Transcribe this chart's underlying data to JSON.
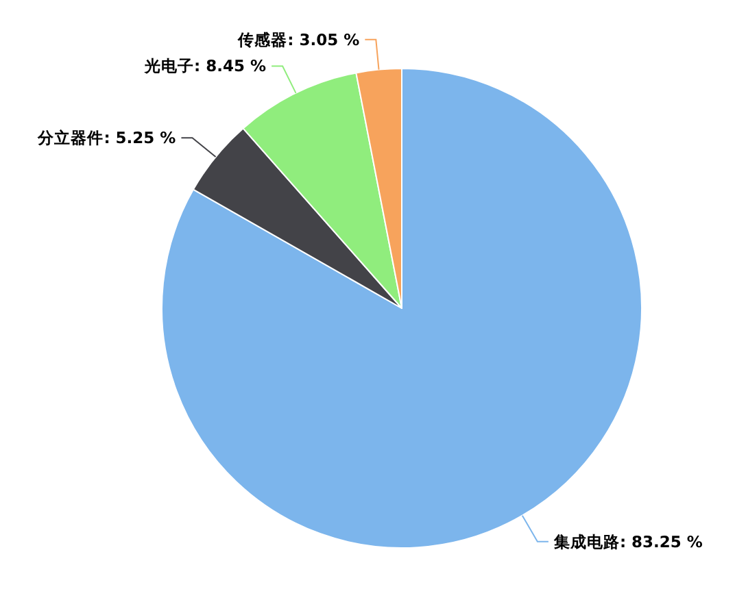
{
  "chart_data": {
    "type": "pie",
    "categories": [
      "集成电路",
      "分立器件",
      "光电子",
      "传感器"
    ],
    "values": [
      83.25,
      5.25,
      8.45,
      3.05
    ],
    "colors": [
      "#7cb5ec",
      "#434348",
      "#90ed7d",
      "#f7a35c"
    ],
    "value_labels": [
      "83.25 %",
      "5.25 %",
      "8.45 %",
      "3.05 %"
    ]
  }
}
